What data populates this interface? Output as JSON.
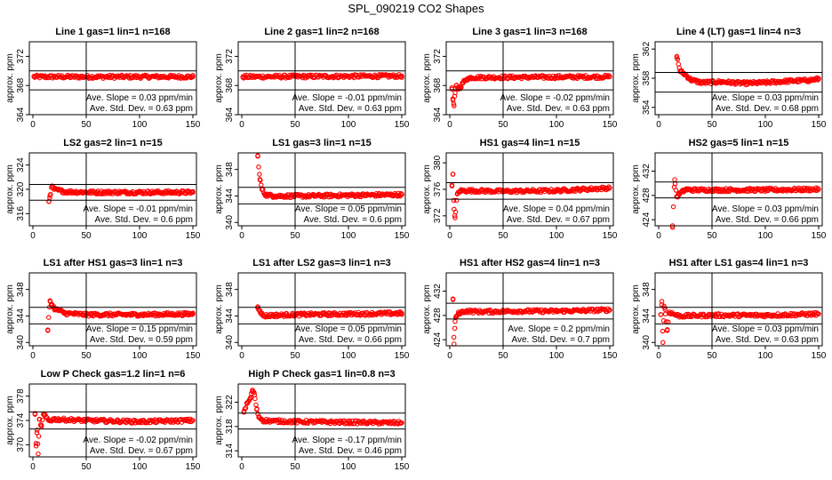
{
  "title": "SPL_090219  CO2 Shapes",
  "colors": {
    "points": "#ff0000",
    "frame": "#000000"
  },
  "chart_data": [
    {
      "type": "scatter",
      "title": "Line 1 gas=1 lin=1 n=168",
      "ylabel": "approx. ppm",
      "xlim": [
        0,
        150
      ],
      "ylim": [
        364,
        374
      ],
      "xticks": [
        0,
        50,
        100,
        150
      ],
      "yticks": [
        364,
        368,
        372
      ],
      "hlines": [
        370.0,
        367.4
      ],
      "vline": 50,
      "slope_label": "Ave. Slope = 0.03 ppm/min",
      "sd_label": "Ave. Std. Dev. = 0.63 ppm",
      "series": [
        {
          "x": [
            1,
            150
          ],
          "y": [
            369.2,
            369.2
          ]
        }
      ]
    },
    {
      "type": "scatter",
      "title": "Line 2 gas=1 lin=2 n=168",
      "ylabel": "approx. ppm",
      "xlim": [
        0,
        150
      ],
      "ylim": [
        364,
        374
      ],
      "xticks": [
        0,
        50,
        100,
        150
      ],
      "yticks": [
        364,
        368,
        372
      ],
      "hlines": [
        370.0,
        367.4
      ],
      "vline": 50,
      "slope_label": "Ave. Slope = -0.01 ppm/min",
      "sd_label": "Ave. Std. Dev. = 0.63 ppm",
      "series": [
        {
          "x": [
            1,
            150
          ],
          "y": [
            369.2,
            369.3
          ]
        }
      ]
    },
    {
      "type": "scatter",
      "title": "Line 3 gas=1 lin=3 n=168",
      "ylabel": "approx. ppm",
      "xlim": [
        0,
        150
      ],
      "ylim": [
        364,
        374
      ],
      "xticks": [
        0,
        50,
        100,
        150
      ],
      "yticks": [
        364,
        368,
        372
      ],
      "hlines": [
        370.0,
        367.4
      ],
      "vline": 50,
      "slope_label": "Ave. Slope = -0.02 ppm/min",
      "sd_label": "Ave. Std. Dev. = 0.63 ppm",
      "series": [
        {
          "x": [
            2,
            3,
            4,
            5,
            6,
            8,
            10,
            13,
            16,
            20,
            150
          ],
          "y": [
            367.5,
            366.0,
            365.2,
            367.0,
            368.0,
            367.6,
            367.8,
            368.5,
            368.9,
            369.1,
            369.2
          ]
        }
      ]
    },
    {
      "type": "scatter",
      "title": "Line 4 (LT) gas=1 lin=4 n=3",
      "ylabel": "approx. ppm",
      "xlim": [
        0,
        150
      ],
      "ylim": [
        353,
        363
      ],
      "xticks": [
        0,
        50,
        100,
        150
      ],
      "yticks": [
        354,
        358,
        362
      ],
      "hlines": [
        358.8,
        356.1
      ],
      "vline": 50,
      "slope_label": "Ave. Slope = 0.03 ppm/min",
      "sd_label": "Ave. Std. Dev. = 0.68 ppm",
      "series": [
        {
          "x": [
            17,
            20,
            25,
            30,
            40,
            60,
            80,
            100,
            120,
            140,
            150
          ],
          "y": [
            361.0,
            359.0,
            358.5,
            357.8,
            357.4,
            357.5,
            357.3,
            357.4,
            357.6,
            357.7,
            357.9
          ]
        }
      ]
    },
    {
      "type": "scatter",
      "title": "LS2 gas=2 lin=1 n=15",
      "ylabel": "approx. ppm",
      "xlim": [
        0,
        150
      ],
      "ylim": [
        314,
        326
      ],
      "xticks": [
        0,
        50,
        100,
        150
      ],
      "yticks": [
        316,
        320,
        324
      ],
      "hlines": [
        320.8,
        318.2
      ],
      "vline": 50,
      "slope_label": "Ave. Slope = -0.01 ppm/min",
      "sd_label": "Ave. Std. Dev. = 0.6 ppm",
      "series": [
        {
          "x": [
            15,
            16,
            18,
            20,
            30,
            60,
            100,
            150
          ],
          "y": [
            318.0,
            319.0,
            320.5,
            320.0,
            319.6,
            319.5,
            319.5,
            319.5
          ]
        }
      ]
    },
    {
      "type": "scatter",
      "title": "LS1 gas=3 lin=1 n=15",
      "ylabel": "approx. ppm",
      "xlim": [
        0,
        150
      ],
      "ylim": [
        339.5,
        350.5
      ],
      "xticks": [
        0,
        50,
        100,
        150
      ],
      "yticks": [
        340,
        344,
        348
      ],
      "hlines": [
        345.3,
        342.8
      ],
      "vline": 50,
      "slope_label": "Ave. Slope = 0.05 ppm/min",
      "sd_label": "Ave. Std. Dev. = 0.6 ppm",
      "series": [
        {
          "x": [
            15,
            17,
            19,
            22,
            30,
            60,
            100,
            150
          ],
          "y": [
            350.0,
            346.5,
            345.0,
            344.2,
            344.0,
            344.0,
            344.1,
            344.2
          ]
        }
      ]
    },
    {
      "type": "scatter",
      "title": "HS1 gas=4 lin=1 n=15",
      "ylabel": "approx. ppm",
      "xlim": [
        0,
        150
      ],
      "ylim": [
        370.5,
        381.5
      ],
      "xticks": [
        0,
        50,
        100,
        150
      ],
      "yticks": [
        372,
        376,
        380
      ],
      "hlines": [
        377.0,
        374.5
      ],
      "vline": 50,
      "slope_label": "Ave. Slope = 0.04 ppm/min",
      "sd_label": "Ave. Std. Dev. = 0.67 ppm",
      "series": [
        {
          "x": [
            2,
            3,
            4,
            5,
            7,
            10,
            20,
            50,
            100,
            150
          ],
          "y": [
            376.5,
            378.3,
            373.0,
            371.7,
            375.3,
            375.8,
            375.8,
            375.7,
            375.8,
            376.2
          ]
        }
      ]
    },
    {
      "type": "scatter",
      "title": "HS2 gas=5 lin=1 n=15",
      "ylabel": "approx. ppm",
      "xlim": [
        0,
        150
      ],
      "ylim": [
        423,
        435
      ],
      "xticks": [
        0,
        50,
        100,
        150
      ],
      "yticks": [
        424,
        428,
        432
      ],
      "hlines": [
        430.2,
        427.6
      ],
      "vline": 50,
      "slope_label": "Ave. Slope = 0.03 ppm/min",
      "sd_label": "Ave. Std. Dev. = 0.66 ppm",
      "series": [
        {
          "x": [
            13,
            15,
            17,
            19,
            22,
            26,
            30,
            50,
            100,
            150
          ],
          "y": [
            423.0,
            430.6,
            427.8,
            428.2,
            428.6,
            429.0,
            428.9,
            428.9,
            428.9,
            429.0
          ]
        }
      ]
    },
    {
      "type": "scatter",
      "title": "LS1 after HS1 gas=3 lin=1 n=3",
      "ylabel": "approx. ppm",
      "xlim": [
        0,
        150
      ],
      "ylim": [
        339.5,
        350.5
      ],
      "xticks": [
        0,
        50,
        100,
        150
      ],
      "yticks": [
        340,
        344,
        348
      ],
      "hlines": [
        345.3,
        342.8
      ],
      "vline": 50,
      "slope_label": "Ave. Slope = 0.15 ppm/min",
      "sd_label": "Ave. Std. Dev. = 0.59 ppm",
      "series": [
        {
          "x": [
            14,
            16,
            18,
            21,
            25,
            30,
            50,
            100,
            150
          ],
          "y": [
            341.8,
            346.3,
            345.6,
            345.0,
            344.8,
            344.4,
            344.2,
            344.2,
            344.3
          ]
        }
      ]
    },
    {
      "type": "scatter",
      "title": "LS1 after LS2 gas=3 lin=1 n=3",
      "ylabel": "approx. ppm",
      "xlim": [
        0,
        150
      ],
      "ylim": [
        339.5,
        350.5
      ],
      "xticks": [
        0,
        50,
        100,
        150
      ],
      "yticks": [
        340,
        344,
        348
      ],
      "hlines": [
        345.3,
        342.8
      ],
      "vline": 50,
      "slope_label": "Ave. Slope = 0.05 ppm/min",
      "sd_label": "Ave. Std. Dev. = 0.66 ppm",
      "series": [
        {
          "x": [
            15,
            17,
            20,
            30,
            50,
            100,
            150
          ],
          "y": [
            345.4,
            344.8,
            344.0,
            344.1,
            344.2,
            344.3,
            344.4
          ]
        }
      ]
    },
    {
      "type": "scatter",
      "title": "HS1 after HS2 gas=4 lin=1 n=3",
      "ylabel": "approx. ppm",
      "xlim": [
        0,
        150
      ],
      "ylim": [
        423,
        435
      ],
      "xticks": [
        0,
        50,
        100,
        150
      ],
      "yticks": [
        424,
        428,
        432
      ],
      "hlines": [
        430.0,
        427.4
      ],
      "vline": 50,
      "slope_label": "Ave. Slope = 0.2 ppm/min",
      "sd_label": "Ave. Std. Dev. = 0.7 ppm",
      "series": [
        {
          "x": [
            3,
            4,
            5,
            6,
            8,
            10,
            15,
            30,
            60,
            100,
            150
          ],
          "y": [
            430.6,
            423.3,
            427.0,
            427.8,
            428.3,
            428.5,
            428.7,
            428.6,
            428.7,
            428.7,
            428.9
          ]
        }
      ]
    },
    {
      "type": "scatter",
      "title": "HS1 after LS1 gas=4 lin=1 n=3",
      "ylabel": "approx. ppm",
      "xlim": [
        0,
        150
      ],
      "ylim": [
        339.5,
        350.5
      ],
      "xticks": [
        0,
        50,
        100,
        150
      ],
      "yticks": [
        340,
        344,
        348
      ],
      "hlines": [
        345.3,
        342.8
      ],
      "vline": 50,
      "slope_label": "Ave. Slope = 0.03 ppm/min",
      "sd_label": "Ave. Std. Dev. = 0.63 ppm",
      "series": [
        {
          "x": [
            2,
            3,
            4,
            5,
            6,
            8,
            10,
            15,
            20,
            50,
            100,
            150
          ],
          "y": [
            344.2,
            346.2,
            340.0,
            345.5,
            345.0,
            341.8,
            344.6,
            344.2,
            344.0,
            344.1,
            344.1,
            344.3
          ]
        }
      ]
    },
    {
      "type": "scatter",
      "title": "Low P Check gas=1.2 lin=1 n=6",
      "ylabel": "approx. ppm",
      "xlim": [
        0,
        150
      ],
      "ylim": [
        368,
        380
      ],
      "xticks": [
        0,
        50,
        100,
        150
      ],
      "yticks": [
        370,
        374,
        378
      ],
      "hlines": [
        375.4,
        372.6
      ],
      "vline": 50,
      "slope_label": "Ave. Slope = -0.02 ppm/min",
      "sd_label": "Ave. Std. Dev. = 0.67 ppm",
      "series": [
        {
          "x": [
            2,
            3,
            4,
            5,
            6,
            8,
            10,
            15,
            20,
            50,
            100,
            150
          ],
          "y": [
            375.0,
            369.8,
            372.4,
            368.5,
            374.2,
            373.0,
            375.0,
            374.0,
            374.2,
            374.0,
            373.8,
            374.0
          ]
        }
      ]
    },
    {
      "type": "scatter",
      "title": "High P Check gas=1 lin=0.8 n=3",
      "ylabel": "approx. ppm",
      "xlim": [
        0,
        150
      ],
      "ylim": [
        313,
        325
      ],
      "xticks": [
        0,
        50,
        100,
        150
      ],
      "yticks": [
        314,
        318,
        322
      ],
      "hlines": [
        320.2,
        317.6
      ],
      "vline": 50,
      "slope_label": "Ave. Slope = -0.17 ppm/min",
      "sd_label": "Ave. Std. Dev. = 0.46 ppm",
      "series": [
        {
          "x": [
            2,
            5,
            8,
            10,
            12,
            14,
            16,
            20,
            30,
            50,
            100,
            150
          ],
          "y": [
            320.5,
            321.8,
            322.6,
            324.0,
            323.2,
            320.8,
            319.6,
            319.0,
            318.9,
            318.8,
            318.7,
            318.6
          ]
        }
      ]
    }
  ]
}
